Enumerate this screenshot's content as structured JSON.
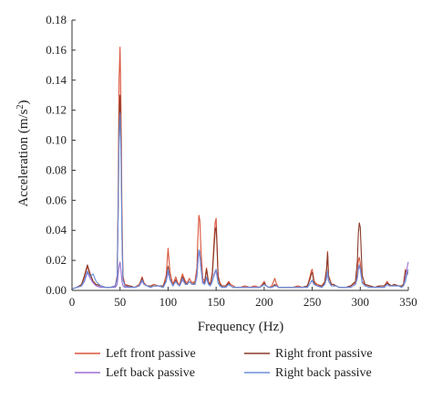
{
  "chart_data": {
    "type": "line",
    "title": "",
    "xlabel": "Frequency (Hz)",
    "ylabel_main": "Acceleration (m/s",
    "ylabel_sup": "2",
    "ylabel_close": ")",
    "xlim": [
      0,
      350
    ],
    "ylim": [
      0,
      0.18
    ],
    "xticks": [
      0,
      50,
      100,
      150,
      200,
      250,
      300,
      350
    ],
    "xtick_labels": [
      "0",
      "50",
      "100",
      "150",
      "200",
      "250",
      "300",
      "350"
    ],
    "yticks": [
      0,
      0.02,
      0.04,
      0.06,
      0.08,
      0.1,
      0.12,
      0.14,
      0.16,
      0.18
    ],
    "ytick_labels": [
      "0.00",
      "0.02",
      "0.04",
      "0.06",
      "0.08",
      "0.10",
      "0.12",
      "0.14",
      "0.16",
      "0.18"
    ],
    "grid": false,
    "legend_position": "bottom",
    "series": [
      {
        "name": "Left front passive",
        "color": "#d9543b",
        "x": [
          0,
          5,
          10,
          13,
          16,
          19,
          22,
          25,
          30,
          35,
          40,
          45,
          47,
          48,
          49,
          50,
          51,
          52,
          53,
          55,
          60,
          65,
          70,
          73,
          75,
          78,
          82,
          85,
          90,
          95,
          98,
          100,
          102,
          105,
          108,
          110,
          112,
          115,
          118,
          120,
          122,
          125,
          128,
          130,
          131,
          132,
          133,
          134,
          136,
          138,
          140,
          142,
          144,
          146,
          148,
          149,
          150,
          151,
          152,
          154,
          156,
          160,
          163,
          165,
          168,
          170,
          175,
          180,
          185,
          190,
          195,
          198,
          200,
          202,
          205,
          208,
          211,
          213,
          215,
          220,
          225,
          230,
          235,
          240,
          245,
          248,
          249,
          250,
          252,
          255,
          260,
          263,
          265,
          266,
          267,
          270,
          272,
          275,
          278,
          280,
          285,
          290,
          295,
          297,
          298,
          299,
          300,
          302,
          305,
          310,
          315,
          320,
          325,
          328,
          330,
          333,
          335,
          340,
          343,
          345,
          347,
          349,
          350
        ],
        "y": [
          0.001,
          0.002,
          0.004,
          0.009,
          0.016,
          0.01,
          0.006,
          0.004,
          0.003,
          0.002,
          0.002,
          0.003,
          0.01,
          0.06,
          0.14,
          0.162,
          0.12,
          0.05,
          0.01,
          0.004,
          0.003,
          0.002,
          0.004,
          0.009,
          0.005,
          0.003,
          0.003,
          0.004,
          0.003,
          0.003,
          0.01,
          0.028,
          0.012,
          0.004,
          0.009,
          0.005,
          0.004,
          0.011,
          0.006,
          0.005,
          0.008,
          0.005,
          0.006,
          0.015,
          0.035,
          0.05,
          0.047,
          0.03,
          0.008,
          0.006,
          0.015,
          0.006,
          0.004,
          0.012,
          0.035,
          0.045,
          0.048,
          0.03,
          0.01,
          0.005,
          0.003,
          0.003,
          0.006,
          0.004,
          0.003,
          0.002,
          0.002,
          0.003,
          0.002,
          0.003,
          0.002,
          0.004,
          0.006,
          0.003,
          0.002,
          0.003,
          0.008,
          0.004,
          0.002,
          0.002,
          0.002,
          0.002,
          0.003,
          0.002,
          0.003,
          0.01,
          0.013,
          0.014,
          0.006,
          0.004,
          0.003,
          0.006,
          0.015,
          0.026,
          0.01,
          0.004,
          0.004,
          0.003,
          0.002,
          0.002,
          0.002,
          0.003,
          0.005,
          0.012,
          0.02,
          0.022,
          0.018,
          0.006,
          0.004,
          0.003,
          0.002,
          0.003,
          0.003,
          0.006,
          0.004,
          0.003,
          0.004,
          0.003,
          0.003,
          0.004,
          0.014,
          0.012,
          0.012
        ]
      },
      {
        "name": "Right front passive",
        "color": "#8a3a2a",
        "x": [
          0,
          5,
          10,
          13,
          16,
          19,
          22,
          25,
          30,
          35,
          40,
          45,
          47,
          48,
          49,
          50,
          51,
          52,
          53,
          55,
          60,
          65,
          70,
          73,
          75,
          78,
          82,
          85,
          90,
          95,
          98,
          100,
          102,
          105,
          108,
          110,
          112,
          115,
          118,
          120,
          122,
          125,
          128,
          130,
          131,
          132,
          133,
          134,
          136,
          138,
          140,
          142,
          144,
          146,
          148,
          149,
          150,
          151,
          152,
          154,
          156,
          160,
          163,
          165,
          168,
          170,
          175,
          180,
          185,
          190,
          195,
          198,
          200,
          202,
          205,
          208,
          211,
          213,
          215,
          220,
          225,
          230,
          235,
          240,
          245,
          248,
          249,
          250,
          252,
          255,
          260,
          263,
          265,
          266,
          267,
          270,
          272,
          275,
          278,
          280,
          285,
          290,
          295,
          297,
          298,
          299,
          300,
          302,
          305,
          310,
          315,
          320,
          325,
          328,
          330,
          333,
          335,
          340,
          343,
          345,
          347,
          349,
          350
        ],
        "y": [
          0.001,
          0.002,
          0.004,
          0.01,
          0.017,
          0.011,
          0.006,
          0.004,
          0.003,
          0.002,
          0.002,
          0.003,
          0.008,
          0.05,
          0.11,
          0.13,
          0.1,
          0.04,
          0.008,
          0.003,
          0.003,
          0.002,
          0.003,
          0.008,
          0.004,
          0.003,
          0.003,
          0.003,
          0.003,
          0.003,
          0.007,
          0.016,
          0.008,
          0.003,
          0.007,
          0.004,
          0.003,
          0.009,
          0.005,
          0.004,
          0.006,
          0.004,
          0.005,
          0.01,
          0.02,
          0.026,
          0.025,
          0.018,
          0.006,
          0.005,
          0.014,
          0.005,
          0.004,
          0.01,
          0.03,
          0.04,
          0.042,
          0.028,
          0.009,
          0.004,
          0.003,
          0.003,
          0.005,
          0.003,
          0.002,
          0.002,
          0.002,
          0.002,
          0.002,
          0.002,
          0.002,
          0.003,
          0.005,
          0.003,
          0.002,
          0.002,
          0.004,
          0.003,
          0.002,
          0.002,
          0.002,
          0.002,
          0.002,
          0.002,
          0.003,
          0.008,
          0.011,
          0.012,
          0.005,
          0.003,
          0.003,
          0.005,
          0.014,
          0.025,
          0.009,
          0.004,
          0.004,
          0.003,
          0.002,
          0.002,
          0.002,
          0.003,
          0.006,
          0.02,
          0.038,
          0.045,
          0.042,
          0.01,
          0.004,
          0.003,
          0.002,
          0.003,
          0.003,
          0.005,
          0.004,
          0.003,
          0.004,
          0.003,
          0.003,
          0.004,
          0.013,
          0.011,
          0.011
        ]
      },
      {
        "name": "Left back passive",
        "color": "#9b6fd6",
        "x": [
          0,
          5,
          10,
          13,
          16,
          19,
          22,
          25,
          30,
          35,
          40,
          45,
          47,
          48,
          49,
          50,
          51,
          52,
          53,
          55,
          60,
          65,
          70,
          73,
          75,
          78,
          82,
          85,
          90,
          95,
          98,
          100,
          102,
          105,
          108,
          110,
          112,
          115,
          118,
          120,
          122,
          125,
          128,
          130,
          131,
          132,
          133,
          134,
          136,
          138,
          140,
          142,
          144,
          146,
          148,
          149,
          150,
          151,
          152,
          154,
          156,
          160,
          163,
          165,
          168,
          170,
          175,
          180,
          185,
          190,
          195,
          198,
          200,
          202,
          205,
          208,
          211,
          213,
          215,
          220,
          225,
          230,
          235,
          240,
          245,
          248,
          249,
          250,
          252,
          255,
          260,
          263,
          265,
          266,
          267,
          270,
          272,
          275,
          278,
          280,
          285,
          290,
          295,
          297,
          298,
          299,
          300,
          302,
          305,
          310,
          315,
          320,
          325,
          328,
          330,
          333,
          335,
          340,
          343,
          345,
          347,
          349,
          350
        ],
        "y": [
          0.001,
          0.002,
          0.003,
          0.006,
          0.012,
          0.008,
          0.005,
          0.003,
          0.002,
          0.002,
          0.002,
          0.002,
          0.004,
          0.01,
          0.016,
          0.019,
          0.013,
          0.006,
          0.003,
          0.002,
          0.002,
          0.002,
          0.003,
          0.006,
          0.004,
          0.003,
          0.002,
          0.003,
          0.003,
          0.002,
          0.006,
          0.012,
          0.007,
          0.003,
          0.006,
          0.004,
          0.003,
          0.007,
          0.004,
          0.004,
          0.006,
          0.004,
          0.004,
          0.009,
          0.018,
          0.025,
          0.024,
          0.016,
          0.005,
          0.004,
          0.008,
          0.004,
          0.003,
          0.006,
          0.01,
          0.012,
          0.013,
          0.009,
          0.005,
          0.003,
          0.002,
          0.002,
          0.004,
          0.003,
          0.002,
          0.002,
          0.002,
          0.002,
          0.002,
          0.002,
          0.002,
          0.003,
          0.004,
          0.003,
          0.002,
          0.002,
          0.003,
          0.003,
          0.002,
          0.002,
          0.002,
          0.002,
          0.002,
          0.002,
          0.002,
          0.005,
          0.006,
          0.006,
          0.004,
          0.003,
          0.002,
          0.004,
          0.008,
          0.012,
          0.006,
          0.003,
          0.003,
          0.003,
          0.002,
          0.002,
          0.002,
          0.002,
          0.004,
          0.008,
          0.014,
          0.016,
          0.014,
          0.005,
          0.003,
          0.002,
          0.002,
          0.002,
          0.002,
          0.004,
          0.003,
          0.003,
          0.003,
          0.003,
          0.002,
          0.003,
          0.008,
          0.016,
          0.019
        ]
      },
      {
        "name": "Right back passive",
        "color": "#6a8fd8",
        "x": [
          0,
          5,
          10,
          13,
          16,
          19,
          22,
          25,
          30,
          35,
          40,
          45,
          47,
          48,
          49,
          50,
          51,
          52,
          53,
          55,
          60,
          65,
          70,
          73,
          75,
          78,
          82,
          85,
          90,
          95,
          98,
          100,
          102,
          105,
          108,
          110,
          112,
          115,
          118,
          120,
          122,
          125,
          128,
          130,
          131,
          132,
          133,
          134,
          136,
          138,
          140,
          142,
          144,
          146,
          148,
          149,
          150,
          151,
          152,
          154,
          156,
          160,
          163,
          165,
          168,
          170,
          175,
          180,
          185,
          190,
          195,
          198,
          200,
          202,
          205,
          208,
          211,
          213,
          215,
          220,
          225,
          230,
          235,
          240,
          245,
          248,
          249,
          250,
          252,
          255,
          260,
          263,
          265,
          266,
          267,
          270,
          272,
          275,
          278,
          280,
          285,
          290,
          295,
          297,
          298,
          299,
          300,
          302,
          305,
          310,
          315,
          320,
          325,
          328,
          330,
          333,
          335,
          340,
          343,
          345,
          347,
          349,
          350
        ],
        "y": [
          0.001,
          0.002,
          0.003,
          0.007,
          0.013,
          0.009,
          0.011,
          0.006,
          0.003,
          0.002,
          0.002,
          0.003,
          0.008,
          0.05,
          0.1,
          0.118,
          0.09,
          0.035,
          0.007,
          0.003,
          0.002,
          0.002,
          0.003,
          0.007,
          0.004,
          0.003,
          0.002,
          0.003,
          0.003,
          0.002,
          0.006,
          0.014,
          0.007,
          0.003,
          0.006,
          0.004,
          0.003,
          0.008,
          0.004,
          0.004,
          0.006,
          0.004,
          0.004,
          0.01,
          0.02,
          0.027,
          0.026,
          0.017,
          0.005,
          0.004,
          0.009,
          0.004,
          0.003,
          0.006,
          0.011,
          0.013,
          0.014,
          0.01,
          0.005,
          0.003,
          0.002,
          0.002,
          0.004,
          0.003,
          0.002,
          0.002,
          0.002,
          0.002,
          0.002,
          0.002,
          0.002,
          0.003,
          0.004,
          0.003,
          0.002,
          0.002,
          0.003,
          0.003,
          0.002,
          0.002,
          0.002,
          0.002,
          0.002,
          0.002,
          0.002,
          0.005,
          0.006,
          0.007,
          0.004,
          0.003,
          0.002,
          0.004,
          0.009,
          0.013,
          0.006,
          0.003,
          0.003,
          0.003,
          0.002,
          0.002,
          0.002,
          0.002,
          0.004,
          0.009,
          0.015,
          0.017,
          0.015,
          0.005,
          0.003,
          0.002,
          0.002,
          0.002,
          0.002,
          0.004,
          0.003,
          0.003,
          0.003,
          0.003,
          0.002,
          0.003,
          0.006,
          0.012,
          0.014
        ]
      }
    ]
  }
}
